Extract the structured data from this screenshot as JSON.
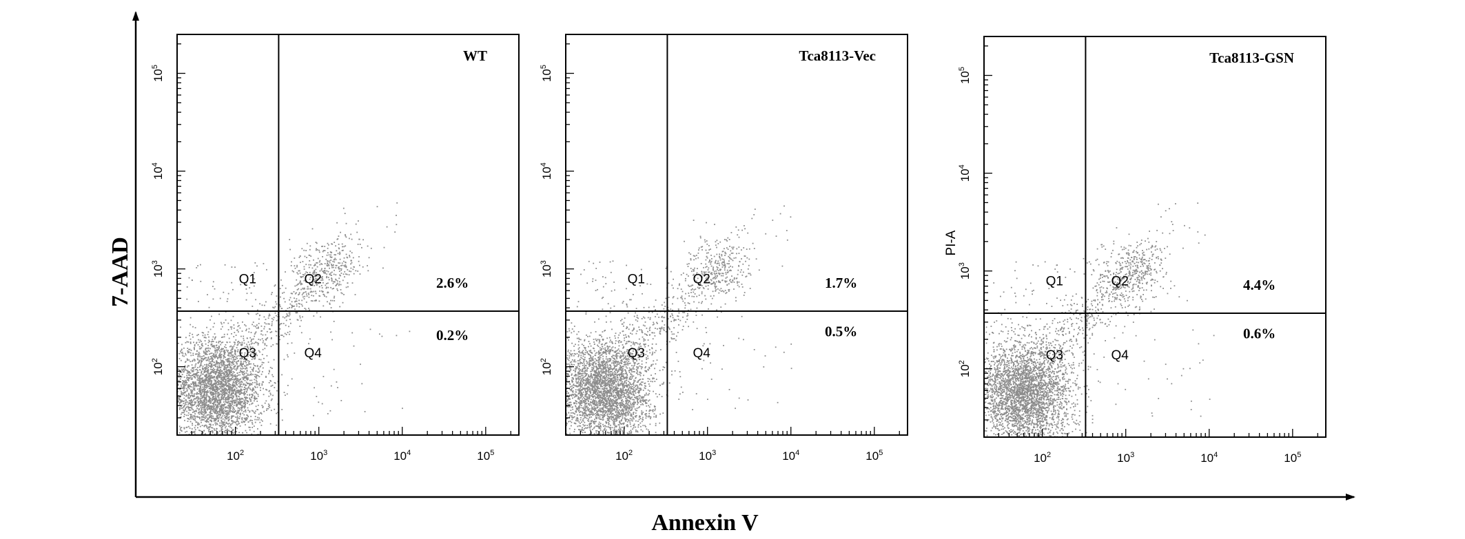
{
  "figure": {
    "y_axis_label": "7-AAD",
    "x_axis_label": "Annexin V"
  },
  "chart_data": [
    {
      "type": "scatter",
      "title": "WT",
      "ylabel": "",
      "x_scale": "log",
      "y_scale": "log",
      "xlim": [
        20,
        250000
      ],
      "ylim": [
        20,
        250000
      ],
      "x_ticks": [
        100,
        1000,
        10000,
        100000
      ],
      "y_ticks": [
        100,
        1000,
        10000,
        100000
      ],
      "x_tick_labels": [
        {
          "base": "10",
          "exp": "2"
        },
        {
          "base": "10",
          "exp": "3"
        },
        {
          "base": "10",
          "exp": "4"
        },
        {
          "base": "10",
          "exp": "5"
        }
      ],
      "y_tick_labels": [
        {
          "base": "10",
          "exp": "2"
        },
        {
          "base": "10",
          "exp": "3"
        },
        {
          "base": "10",
          "exp": "4"
        },
        {
          "base": "10",
          "exp": "5"
        }
      ],
      "gate": {
        "x": 330,
        "y": 370
      },
      "quadrants": [
        {
          "label": "Q1",
          "x": 140,
          "y": 800
        },
        {
          "label": "Q2",
          "x": 850,
          "y": 800
        },
        {
          "label": "Q3",
          "x": 140,
          "y": 140
        },
        {
          "label": "Q4",
          "x": 850,
          "y": 140
        }
      ],
      "percentages": [
        {
          "quadrant": "Q2",
          "value": "2.6%",
          "x": 40000,
          "y": 720
        },
        {
          "quadrant": "Q4",
          "value": "0.2%",
          "x": 40000,
          "y": 210
        }
      ],
      "point_color": "#8c8c8c"
    },
    {
      "type": "scatter",
      "title": "Tca8113-Vec",
      "ylabel": "",
      "x_scale": "log",
      "y_scale": "log",
      "xlim": [
        20,
        250000
      ],
      "ylim": [
        20,
        250000
      ],
      "x_ticks": [
        100,
        1000,
        10000,
        100000
      ],
      "y_ticks": [
        100,
        1000,
        10000,
        100000
      ],
      "x_tick_labels": [
        {
          "base": "10",
          "exp": "2"
        },
        {
          "base": "10",
          "exp": "3"
        },
        {
          "base": "10",
          "exp": "4"
        },
        {
          "base": "10",
          "exp": "5"
        }
      ],
      "y_tick_labels": [
        {
          "base": "10",
          "exp": "2"
        },
        {
          "base": "10",
          "exp": "3"
        },
        {
          "base": "10",
          "exp": "4"
        },
        {
          "base": "10",
          "exp": "5"
        }
      ],
      "gate": {
        "x": 330,
        "y": 370
      },
      "quadrants": [
        {
          "label": "Q1",
          "x": 140,
          "y": 800
        },
        {
          "label": "Q2",
          "x": 850,
          "y": 800
        },
        {
          "label": "Q3",
          "x": 140,
          "y": 140
        },
        {
          "label": "Q4",
          "x": 850,
          "y": 140
        }
      ],
      "percentages": [
        {
          "quadrant": "Q2",
          "value": "1.7%",
          "x": 40000,
          "y": 720
        },
        {
          "quadrant": "Q4",
          "value": "0.5%",
          "x": 40000,
          "y": 230
        }
      ],
      "point_color": "#8c8c8c"
    },
    {
      "type": "scatter",
      "title": "Tca8113-GSN",
      "ylabel": "PI-A",
      "x_scale": "log",
      "y_scale": "log",
      "xlim": [
        20,
        250000
      ],
      "ylim": [
        20,
        250000
      ],
      "x_ticks": [
        100,
        1000,
        10000,
        100000
      ],
      "y_ticks": [
        100,
        1000,
        10000,
        100000
      ],
      "x_tick_labels": [
        {
          "base": "10",
          "exp": "2"
        },
        {
          "base": "10",
          "exp": "3"
        },
        {
          "base": "10",
          "exp": "4"
        },
        {
          "base": "10",
          "exp": "5"
        }
      ],
      "y_tick_labels": [
        {
          "base": "10",
          "exp": "2"
        },
        {
          "base": "10",
          "exp": "3"
        },
        {
          "base": "10",
          "exp": "4"
        },
        {
          "base": "10",
          "exp": "5"
        }
      ],
      "gate": {
        "x": 330,
        "y": 370
      },
      "quadrants": [
        {
          "label": "Q1",
          "x": 140,
          "y": 800
        },
        {
          "label": "Q2",
          "x": 850,
          "y": 800
        },
        {
          "label": "Q3",
          "x": 140,
          "y": 140
        },
        {
          "label": "Q4",
          "x": 850,
          "y": 140
        }
      ],
      "percentages": [
        {
          "quadrant": "Q2",
          "value": "4.4%",
          "x": 40000,
          "y": 720
        },
        {
          "quadrant": "Q4",
          "value": "0.6%",
          "x": 40000,
          "y": 230
        }
      ],
      "point_color": "#8c8c8c"
    }
  ]
}
